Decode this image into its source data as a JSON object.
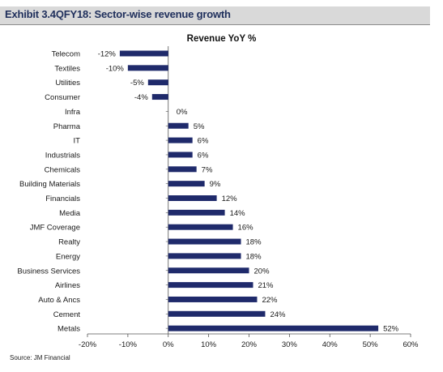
{
  "header": {
    "title": "Exhibit 3.4QFY18: Sector-wise revenue growth"
  },
  "source": "Source: JM Financial",
  "colors": {
    "bar": "#1f2a6b",
    "header_bg": "#d9d9d9",
    "header_text": "#1f2f5c"
  },
  "chart_data": {
    "type": "bar",
    "orientation": "horizontal",
    "title": "Revenue YoY %",
    "xlabel": "",
    "ylabel": "",
    "xlim": [
      -20,
      60
    ],
    "xticks": [
      -20,
      -10,
      0,
      10,
      20,
      30,
      40,
      50,
      60
    ],
    "tick_format": "percent",
    "grid": false,
    "legend": "none",
    "categories": [
      "Telecom",
      "Textiles",
      "Utilities",
      "Consumer",
      "Infra",
      "Pharma",
      "IT",
      "Industrials",
      "Chemicals",
      "Building Materials",
      "Financials",
      "Media",
      "JMF Coverage",
      "Realty",
      "Energy",
      "Business Services",
      "Airlines",
      "Auto & Ancs",
      "Cement",
      "Metals"
    ],
    "values": [
      -12,
      -10,
      -5,
      -4,
      0,
      5,
      6,
      6,
      7,
      9,
      12,
      14,
      16,
      18,
      18,
      20,
      21,
      22,
      24,
      52
    ],
    "data_labels": [
      "-12%",
      "-10%",
      "-5%",
      "-4%",
      "0%",
      "5%",
      "6%",
      "6%",
      "7%",
      "9%",
      "12%",
      "14%",
      "16%",
      "18%",
      "18%",
      "20%",
      "21%",
      "22%",
      "24%",
      "52%"
    ]
  }
}
